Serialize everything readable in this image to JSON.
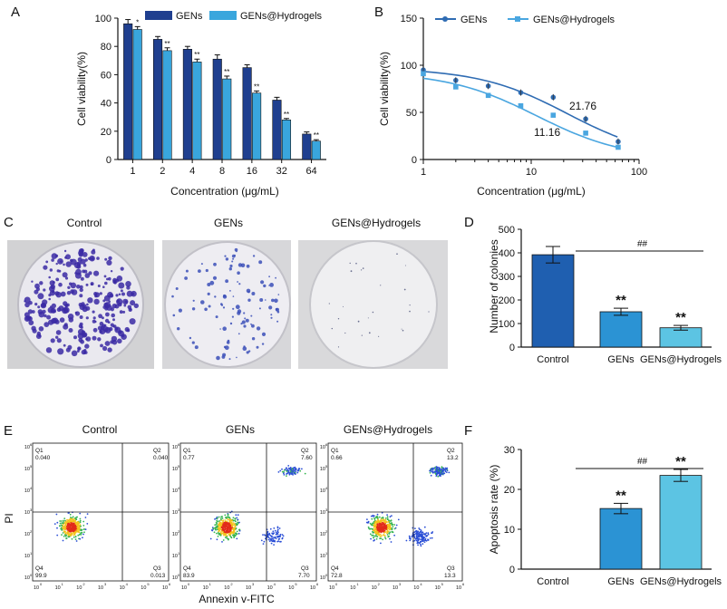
{
  "panel_letters": [
    "A",
    "B",
    "C",
    "D",
    "E",
    "F"
  ],
  "colors": {
    "genes_dark": "#1f3f8f",
    "genes_light": "#39a6dd",
    "b_dark": "#2f6cb3",
    "b_light": "#4aa6e0",
    "d_control": "#1f5fb0",
    "d_genes": "#2b93d4",
    "d_hydro": "#5cc4e3",
    "colony_dots": "#3b2aa5"
  },
  "chart_data": [
    {
      "panel": "A",
      "type": "bar",
      "ylabel": "Cell viability(%)",
      "xlabel": "Concentration (μg/mL)",
      "categories": [
        "1",
        "2",
        "4",
        "8",
        "16",
        "32",
        "64"
      ],
      "ylim": [
        0,
        100
      ],
      "yticks": [
        "0",
        "20",
        "40",
        "60",
        "80",
        "100"
      ],
      "legend_position": "top",
      "series": [
        {
          "name": "GENs",
          "values": [
            96,
            85,
            78,
            71,
            65,
            42,
            18
          ],
          "errors": [
            3,
            2,
            2,
            3,
            2,
            2,
            1.5
          ]
        },
        {
          "name": "GENs@Hydrogels",
          "values": [
            92,
            77,
            69,
            57,
            47,
            28,
            13
          ],
          "errors": [
            2,
            2,
            2,
            2,
            1.5,
            1,
            1
          ]
        }
      ],
      "significance": [
        "*",
        "**",
        "**",
        "**",
        "**",
        "**",
        "**"
      ]
    },
    {
      "panel": "B",
      "type": "scatter",
      "xscale": "log",
      "ylabel": "Cell viability(%)",
      "xlabel": "Concentration (μg/mL)",
      "xticks": [
        "1",
        "10",
        "100"
      ],
      "yticks": [
        "0",
        "50",
        "100",
        "150"
      ],
      "ylim": [
        0,
        150
      ],
      "xlim": [
        1,
        100
      ],
      "legend_position": "top",
      "series": [
        {
          "name": "GENs",
          "x": [
            1,
            2,
            4,
            8,
            16,
            32,
            64
          ],
          "y": [
            95,
            84,
            78,
            71,
            66,
            43,
            19
          ],
          "ic50": 21.76
        },
        {
          "name": "GENs@Hydrogels",
          "x": [
            1,
            2,
            4,
            8,
            16,
            32,
            64
          ],
          "y": [
            91,
            77,
            68,
            57,
            47,
            28,
            13
          ],
          "ic50": 11.16
        }
      ],
      "annotations": [
        "21.76",
        "11.16"
      ]
    },
    {
      "panel": "D",
      "type": "bar",
      "ylabel": "Number of colonies",
      "categories": [
        "Control",
        "GENs",
        "GENs@Hydrogels"
      ],
      "values": [
        392,
        150,
        82
      ],
      "errors": [
        35,
        15,
        10
      ],
      "ylim": [
        0,
        500
      ],
      "yticks": [
        "0",
        "100",
        "200",
        "300",
        "400",
        "500"
      ],
      "stars": [
        "",
        "**",
        "**"
      ],
      "bracket_label": "##"
    },
    {
      "panel": "F",
      "type": "bar",
      "ylabel": "Apoptosis rate (%)",
      "categories": [
        "Control",
        "GENs",
        "GENs@Hydrogels"
      ],
      "values": [
        0,
        15.2,
        23.5
      ],
      "errors": [
        0,
        1.3,
        1.5
      ],
      "ylim": [
        0,
        30
      ],
      "yticks": [
        "0",
        "10",
        "20",
        "30"
      ],
      "stars": [
        "",
        "**",
        "**"
      ],
      "bracket_label": "##"
    }
  ],
  "panel_c": {
    "titles": [
      "Control",
      "GENs",
      "GENs@Hydrogels"
    ]
  },
  "panel_e": {
    "titles": [
      "Control",
      "GENs",
      "GENs@Hydrogels"
    ],
    "ylabel": "PI",
    "xlabel": "Annexin v-FITC",
    "quadrants": [
      {
        "q1": "Q1",
        "q1v": "0.040",
        "q2": "Q2",
        "q2v": "0.040",
        "q3": "Q3",
        "q3v": "0.013",
        "q4": "Q4",
        "q4v": "99.9"
      },
      {
        "q1": "Q1",
        "q1v": "0.77",
        "q2": "Q2",
        "q2v": "7.60",
        "q3": "Q3",
        "q3v": "7.70",
        "q4": "Q4",
        "q4v": "83.9"
      },
      {
        "q1": "Q1",
        "q1v": "0.66",
        "q2": "Q2",
        "q2v": "13.2",
        "q3": "Q3",
        "q3v": "13.3",
        "q4": "Q4",
        "q4v": "72.8"
      }
    ],
    "axis_ticks": [
      "10",
      "10",
      "10",
      "10",
      "10",
      "10",
      "10"
    ],
    "axis_exps": [
      "0",
      "1",
      "2",
      "3",
      "4",
      "5",
      "6"
    ]
  }
}
